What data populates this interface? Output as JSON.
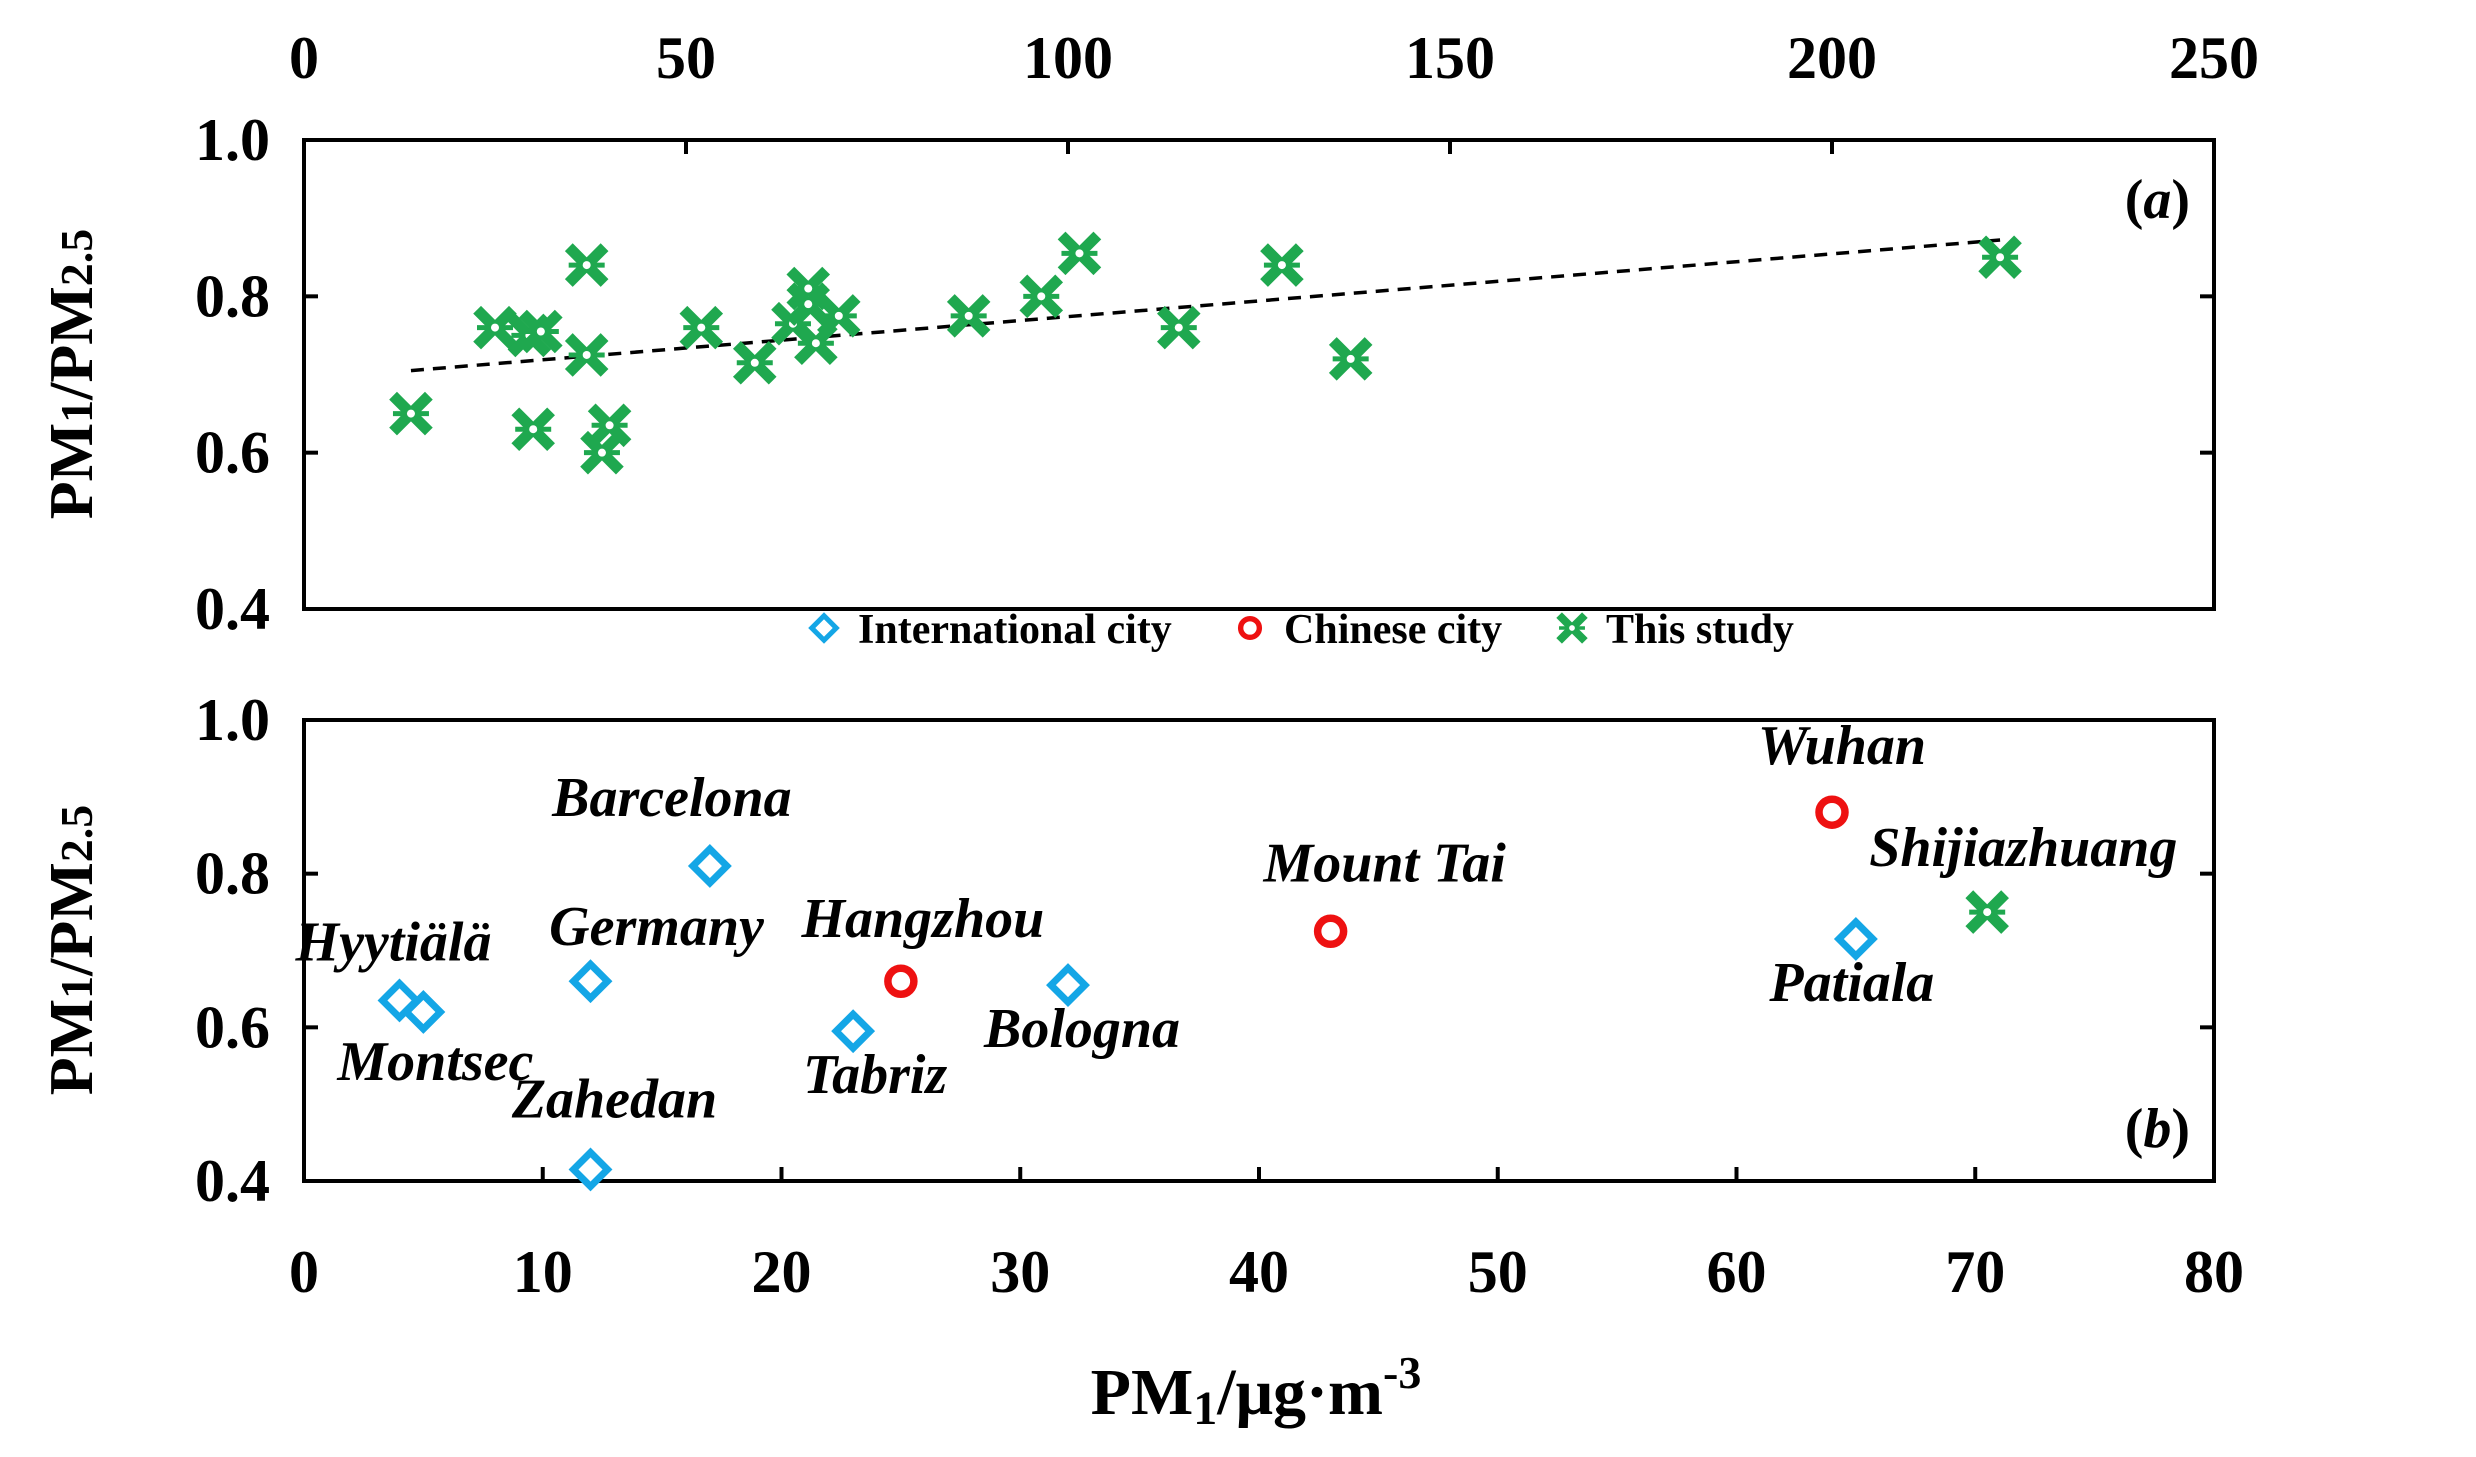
{
  "colors": {
    "international": "#14a6e6",
    "chinese": "#ee1111",
    "this_study": "#1fa84f",
    "axis": "#000000"
  },
  "legend": [
    {
      "label": "International city",
      "marker": "diamond-open",
      "color": "#14a6e6"
    },
    {
      "label": "Chinese city",
      "marker": "circle-open",
      "color": "#ee1111"
    },
    {
      "label": "This study",
      "marker": "star-x",
      "color": "#1fa84f"
    }
  ],
  "chart_data": [
    {
      "type": "scatter",
      "panel_label": "a",
      "ylabel_main": "PM",
      "ylabel_sub1": "1",
      "ylabel_mid": "/PM",
      "ylabel_sub2": "2.5",
      "x_axis_position": "top",
      "xlim": [
        0,
        250
      ],
      "xticks": [
        0,
        50,
        100,
        150,
        200,
        250
      ],
      "ylim": [
        0.4,
        1.0
      ],
      "yticks": [
        0.4,
        0.6,
        0.8,
        1.0
      ],
      "series": [
        {
          "name": "This study",
          "marker": "star-x",
          "points": [
            [
              14,
              0.65
            ],
            [
              25,
              0.76
            ],
            [
              29.5,
              0.75
            ],
            [
              31,
              0.755
            ],
            [
              30,
              0.63
            ],
            [
              37,
              0.84
            ],
            [
              37,
              0.725
            ],
            [
              39,
              0.6
            ],
            [
              40,
              0.635
            ],
            [
              52,
              0.76
            ],
            [
              59,
              0.715
            ],
            [
              64,
              0.765
            ],
            [
              66,
              0.81
            ],
            [
              66,
              0.79
            ],
            [
              67,
              0.74
            ],
            [
              70,
              0.775
            ],
            [
              87,
              0.775
            ],
            [
              96.5,
              0.8
            ],
            [
              101.5,
              0.855
            ],
            [
              114.5,
              0.76
            ],
            [
              128,
              0.84
            ],
            [
              137,
              0.72
            ],
            [
              222,
              0.85
            ]
          ]
        }
      ],
      "trendline": {
        "style": "dashed",
        "x": [
          14,
          222
        ],
        "y": [
          0.705,
          0.872
        ]
      }
    },
    {
      "type": "scatter",
      "panel_label": "b",
      "xlabel_main": "PM",
      "xlabel_sub": "1",
      "xlabel_rest": "/μg·m",
      "xlabel_sup": "-3",
      "ylabel_main": "PM",
      "ylabel_sub1": "1",
      "ylabel_mid": "/PM",
      "ylabel_sub2": "2.5",
      "x_axis_position": "bottom",
      "xlim": [
        0,
        80
      ],
      "xticks": [
        0,
        10,
        20,
        30,
        40,
        50,
        60,
        70,
        80
      ],
      "ylim": [
        0.4,
        1.0
      ],
      "yticks": [
        0.4,
        0.6,
        0.8,
        1.0
      ],
      "series": [
        {
          "name": "International city",
          "marker": "diamond-open",
          "points": [
            {
              "label": "Hyytiälä",
              "x": 4,
              "y": 0.635
            },
            {
              "label": "Montsec",
              "x": 5,
              "y": 0.62
            },
            {
              "label": "Germany",
              "x": 12,
              "y": 0.66
            },
            {
              "label": "Zahedan",
              "x": 12,
              "y": 0.415
            },
            {
              "label": "Barcelona",
              "x": 17,
              "y": 0.81
            },
            {
              "label": "Tabriz",
              "x": 23,
              "y": 0.595
            },
            {
              "label": "Bologna",
              "x": 32,
              "y": 0.655
            },
            {
              "label": "Patiala",
              "x": 65,
              "y": 0.715
            }
          ]
        },
        {
          "name": "Chinese city",
          "marker": "circle-open",
          "points": [
            {
              "label": "Hangzhou",
              "x": 25,
              "y": 0.66
            },
            {
              "label": "Mount Tai",
              "x": 43,
              "y": 0.725
            },
            {
              "label": "Wuhan",
              "x": 64,
              "y": 0.88
            }
          ]
        },
        {
          "name": "This study",
          "marker": "star-x",
          "points": [
            {
              "label": "Shijiazhuang",
              "x": 70.5,
              "y": 0.75
            }
          ]
        }
      ]
    }
  ]
}
